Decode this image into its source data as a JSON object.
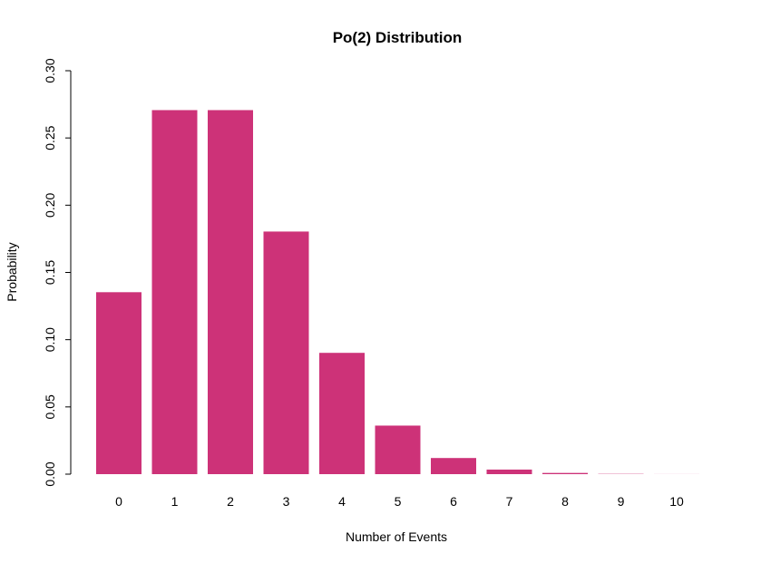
{
  "chart_data": {
    "type": "bar",
    "title": "Po(2) Distribution",
    "xlabel": "Number of Events",
    "ylabel": "Probability",
    "categories": [
      "0",
      "1",
      "2",
      "3",
      "4",
      "5",
      "6",
      "7",
      "8",
      "9",
      "10"
    ],
    "values": [
      0.1353,
      0.2707,
      0.2707,
      0.1804,
      0.0902,
      0.0361,
      0.012,
      0.0034,
      0.0009,
      0.0002,
      4e-05
    ],
    "ylim": [
      0,
      0.3
    ],
    "yticks": [
      "0.00",
      "0.05",
      "0.10",
      "0.15",
      "0.20",
      "0.25",
      "0.30"
    ],
    "bar_color": "#CD3278",
    "grid": false,
    "legend": "none"
  }
}
